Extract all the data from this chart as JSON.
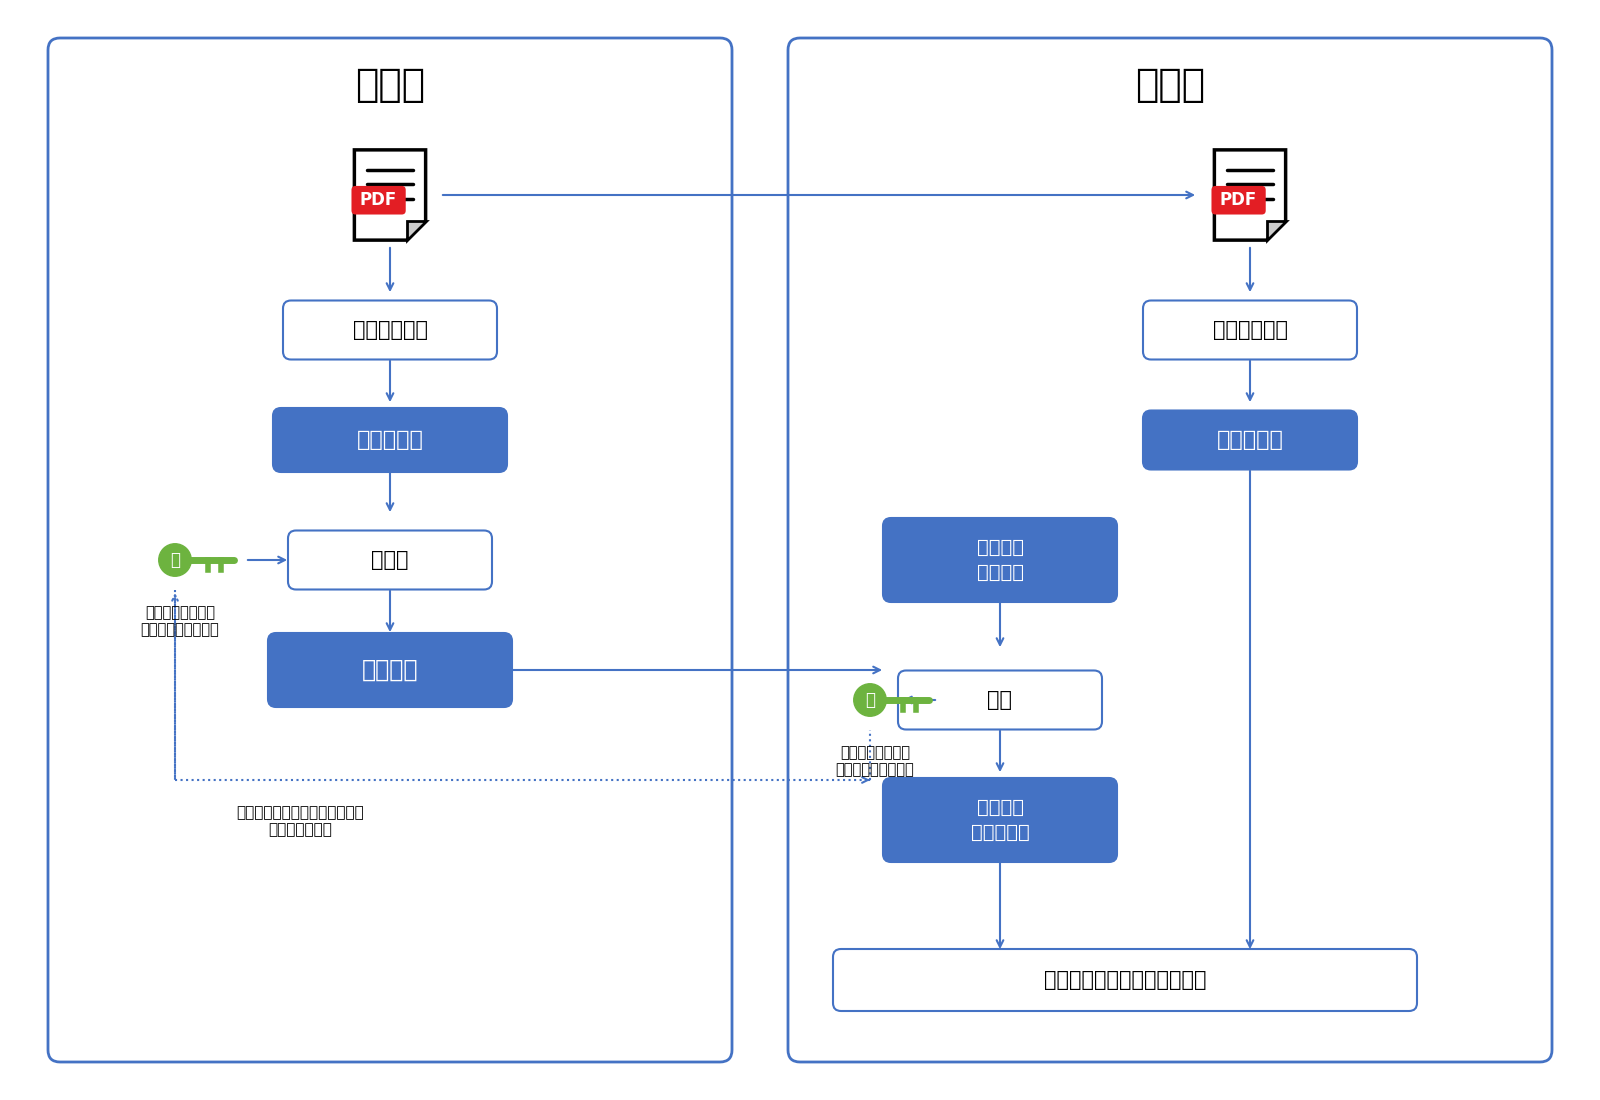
{
  "bg_color": "#ffffff",
  "border_color": "#4472c4",
  "blue_fill": "#4472c4",
  "white_fill": "#ffffff",
  "green_fill": "#6db33f",
  "arrow_color": "#4472c4",
  "sender_title": "送信者",
  "receiver_title": "受信者",
  "label_hash_func": "ハッシュ関数",
  "label_hash_val": "ハッシュ値",
  "label_encrypt": "暗号化",
  "label_digital_sig": "電子署名",
  "label_recv_sig": "受信した\n電子署名",
  "label_decrypt": "復号",
  "label_decrypted_hash": "復号した\nハッシュ値",
  "label_compare": "比較して一致すれば検証成功",
  "label_secret": "秘",
  "label_public": "公",
  "note_key_s": "クラウドサインの\n暗号鍵（＝秘密鍵）",
  "note_key_r": "クラウドサインの\n復号鍵（＝公開鍵）",
  "note_bottom": "暗号鍵と復号鍵は一対一で対応\n復号鍵のみ公開"
}
